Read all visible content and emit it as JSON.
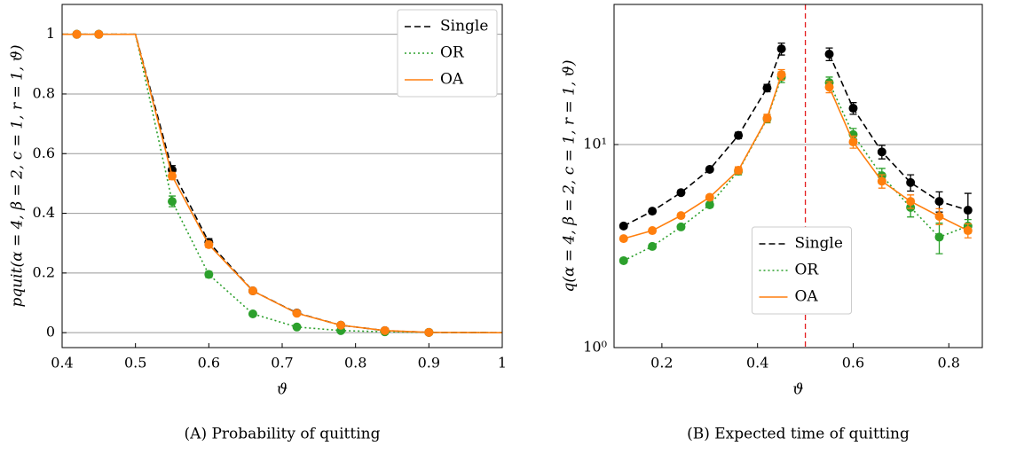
{
  "chart_data": [
    {
      "type": "line",
      "caption": "(A) Probability of quitting",
      "xlabel": "ϑ",
      "ylabel": "pquit(α = 4, β = 2, c = 1, r = 1, ϑ)",
      "x": [
        0.4,
        0.42,
        0.45,
        0.5,
        0.55,
        0.6,
        0.66,
        0.72,
        0.78,
        0.84,
        0.9,
        1
      ],
      "xlim": [
        0.4,
        1
      ],
      "xticks": [
        0.4,
        0.5,
        0.6,
        0.7,
        0.8,
        0.9,
        1
      ],
      "ylim": [
        -0.05,
        1.1
      ],
      "yticks": [
        0,
        0.2,
        0.4,
        0.6,
        0.8,
        1
      ],
      "grid": true,
      "legend": "upper right",
      "series": [
        {
          "name": "Single",
          "color": "#000000",
          "linestyle": "dashed",
          "values": [
            1,
            1,
            1,
            1,
            0.545,
            0.303,
            0.14,
            0.066,
            0.025,
            0.007,
            0.001,
            0
          ],
          "errors": [
            null,
            0.004,
            0.004,
            null,
            0.015,
            0.012,
            0.006,
            0.005,
            0.004,
            0.003,
            0.002,
            null
          ]
        },
        {
          "name": "OR",
          "color": "#2ca02c",
          "linestyle": "dotted",
          "values": [
            1,
            1,
            1,
            1,
            0.44,
            0.195,
            0.063,
            0.019,
            0.007,
            0.003,
            0.001,
            0
          ],
          "errors": [
            null,
            0.004,
            0.004,
            null,
            0.018,
            0.01,
            0.006,
            0.004,
            0.003,
            0.002,
            0.002,
            null
          ]
        },
        {
          "name": "OA",
          "color": "#ff7f0e",
          "linestyle": "solid",
          "values": [
            1,
            1,
            1,
            1,
            0.525,
            0.295,
            0.14,
            0.065,
            0.025,
            0.007,
            0.001,
            0
          ],
          "errors": [
            null,
            0.004,
            0.004,
            null,
            0.012,
            0.01,
            0.006,
            0.005,
            0.004,
            0.003,
            0.002,
            null
          ]
        }
      ]
    },
    {
      "type": "line",
      "caption": "(B) Expected time of quitting",
      "xlabel": "ϑ",
      "ylabel": "q(α = 4, β = 2, c = 1, r = 1, ϑ)",
      "x": [
        0.12,
        0.18,
        0.24,
        0.3,
        0.36,
        0.42,
        0.45,
        0.5,
        0.55,
        0.6,
        0.66,
        0.72,
        0.78,
        0.84
      ],
      "xlim": [
        0.1,
        0.87
      ],
      "xticks": [
        0.2,
        0.4,
        0.6,
        0.8
      ],
      "ylim": [
        1,
        49
      ],
      "ylog": true,
      "yticks": [
        {
          "value": 1,
          "label": "10⁰"
        },
        {
          "value": 10,
          "label": "10¹"
        }
      ],
      "grid": true,
      "legend": "lower center",
      "vlines": [
        {
          "x": 0.5,
          "color": "#e41a1c"
        }
      ],
      "series": [
        {
          "name": "Single",
          "color": "#000000",
          "linestyle": "dashed",
          "values": [
            3.97,
            4.7,
            5.8,
            7.55,
            11.1,
            19,
            29.6,
            null,
            27.9,
            15.1,
            9.2,
            6.5,
            5.25,
            4.75
          ],
          "errors": [
            0.1,
            0.12,
            0.15,
            0.2,
            0.4,
            0.8,
            2,
            null,
            2,
            1,
            0.7,
            0.6,
            0.6,
            1
          ]
        },
        {
          "name": "OR",
          "color": "#2ca02c",
          "linestyle": "dotted",
          "values": [
            2.68,
            3.15,
            3.93,
            5.05,
            7.4,
            13.4,
            21.5,
            null,
            20.2,
            11.2,
            7.03,
            4.9,
            3.5,
            3.97
          ],
          "errors": [
            0.07,
            0.08,
            0.1,
            0.15,
            0.3,
            0.6,
            1.3,
            null,
            1.3,
            0.8,
            0.6,
            0.5,
            0.6,
            0.3
          ]
        },
        {
          "name": "OA",
          "color": "#ff7f0e",
          "linestyle": "solid",
          "values": [
            3.44,
            3.77,
            4.47,
            5.5,
            7.47,
            13.5,
            22.1,
            null,
            19.2,
            10.3,
            6.6,
            5.25,
            4.43,
            3.77
          ],
          "errors": [
            0.08,
            0.09,
            0.11,
            0.15,
            0.3,
            0.6,
            1.3,
            null,
            1.2,
            0.7,
            0.5,
            0.4,
            0.4,
            0.3
          ]
        }
      ]
    }
  ]
}
